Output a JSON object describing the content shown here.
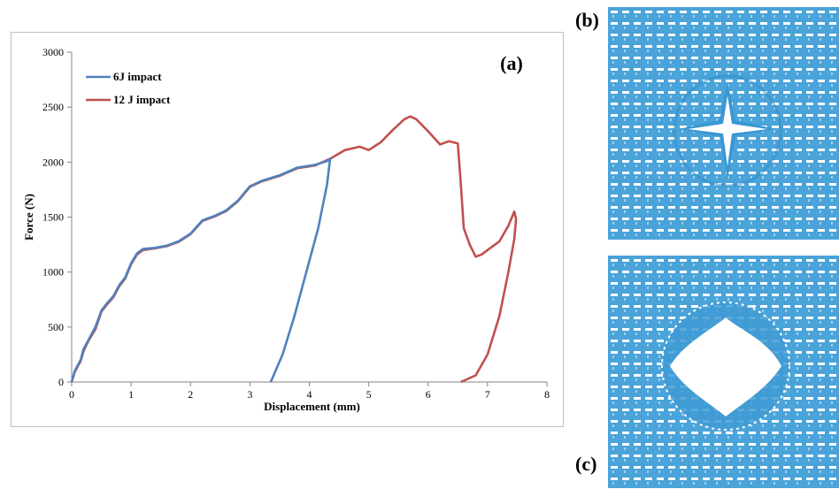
{
  "chart_data": {
    "type": "line",
    "panel_label": "(a)",
    "xlabel": "Displacement (mm)",
    "ylabel": "Force (N)",
    "xlim": [
      0,
      8
    ],
    "ylim": [
      0,
      3000
    ],
    "xticks": [
      "0",
      "1",
      "2",
      "3",
      "4",
      "5",
      "6",
      "7",
      "8"
    ],
    "yticks": [
      "0",
      "500",
      "1000",
      "1500",
      "2000",
      "2500",
      "3000"
    ],
    "grid": false,
    "legend_position": "top-left",
    "series": [
      {
        "name": "6J impact",
        "color": "#4f81bd",
        "points": [
          [
            0,
            0
          ],
          [
            0.05,
            100
          ],
          [
            0.1,
            150
          ],
          [
            0.15,
            200
          ],
          [
            0.2,
            300
          ],
          [
            0.25,
            350
          ],
          [
            0.3,
            400
          ],
          [
            0.4,
            500
          ],
          [
            0.5,
            650
          ],
          [
            0.6,
            720
          ],
          [
            0.7,
            780
          ],
          [
            0.8,
            880
          ],
          [
            0.9,
            950
          ],
          [
            1.0,
            1080
          ],
          [
            1.1,
            1170
          ],
          [
            1.2,
            1210
          ],
          [
            1.4,
            1220
          ],
          [
            1.6,
            1240
          ],
          [
            1.8,
            1280
          ],
          [
            2.0,
            1350
          ],
          [
            2.2,
            1470
          ],
          [
            2.4,
            1510
          ],
          [
            2.6,
            1560
          ],
          [
            2.8,
            1650
          ],
          [
            3.0,
            1780
          ],
          [
            3.2,
            1830
          ],
          [
            3.5,
            1880
          ],
          [
            3.8,
            1950
          ],
          [
            4.1,
            1975
          ],
          [
            4.3,
            2010
          ],
          [
            4.35,
            2030
          ],
          [
            4.3,
            1800
          ],
          [
            4.15,
            1400
          ],
          [
            3.95,
            1000
          ],
          [
            3.75,
            600
          ],
          [
            3.55,
            250
          ],
          [
            3.35,
            0
          ]
        ]
      },
      {
        "name": "12 J impact",
        "color": "#c0504d",
        "points": [
          [
            0,
            0
          ],
          [
            0.05,
            90
          ],
          [
            0.1,
            140
          ],
          [
            0.15,
            190
          ],
          [
            0.2,
            280
          ],
          [
            0.25,
            340
          ],
          [
            0.3,
            390
          ],
          [
            0.4,
            480
          ],
          [
            0.5,
            640
          ],
          [
            0.6,
            710
          ],
          [
            0.7,
            770
          ],
          [
            0.8,
            870
          ],
          [
            0.9,
            940
          ],
          [
            1.0,
            1070
          ],
          [
            1.1,
            1160
          ],
          [
            1.2,
            1200
          ],
          [
            1.4,
            1215
          ],
          [
            1.6,
            1235
          ],
          [
            1.8,
            1275
          ],
          [
            2.0,
            1345
          ],
          [
            2.2,
            1465
          ],
          [
            2.4,
            1505
          ],
          [
            2.6,
            1555
          ],
          [
            2.8,
            1645
          ],
          [
            3.0,
            1775
          ],
          [
            3.2,
            1825
          ],
          [
            3.5,
            1875
          ],
          [
            3.8,
            1945
          ],
          [
            4.1,
            1970
          ],
          [
            4.35,
            2030
          ],
          [
            4.6,
            2110
          ],
          [
            4.85,
            2140
          ],
          [
            5.0,
            2110
          ],
          [
            5.2,
            2180
          ],
          [
            5.4,
            2290
          ],
          [
            5.6,
            2390
          ],
          [
            5.7,
            2415
          ],
          [
            5.8,
            2390
          ],
          [
            6.0,
            2280
          ],
          [
            6.2,
            2160
          ],
          [
            6.35,
            2190
          ],
          [
            6.5,
            2170
          ],
          [
            6.55,
            1800
          ],
          [
            6.6,
            1400
          ],
          [
            6.7,
            1250
          ],
          [
            6.8,
            1140
          ],
          [
            6.9,
            1160
          ],
          [
            7.0,
            1200
          ],
          [
            7.2,
            1280
          ],
          [
            7.35,
            1420
          ],
          [
            7.45,
            1550
          ],
          [
            7.48,
            1480
          ],
          [
            7.45,
            1300
          ],
          [
            7.35,
            1000
          ],
          [
            7.2,
            600
          ],
          [
            7.0,
            250
          ],
          [
            6.8,
            60
          ],
          [
            6.55,
            0
          ]
        ]
      }
    ]
  },
  "panels": {
    "b_label": "(b)",
    "c_label": "(c)"
  },
  "colors": {
    "fabric_blue": "#4aa3d9",
    "fabric_light": "#9fd0ef",
    "hole_white": "#ffffff"
  }
}
